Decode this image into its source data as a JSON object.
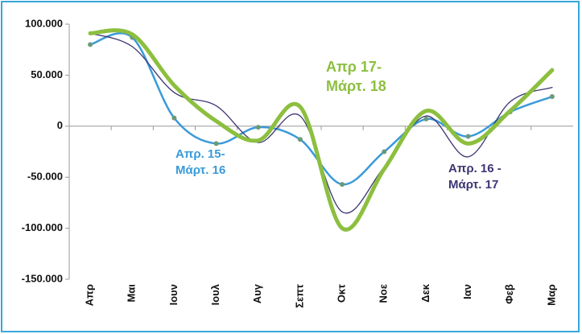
{
  "chart_data": {
    "type": "line",
    "categories": [
      "Απρ",
      "Μαι",
      "Ιουν",
      "Ιουλ",
      "Αυγ",
      "Σεπτ",
      "Οκτ",
      "Νοε",
      "Δεκ",
      "Ιαν",
      "Φεβ",
      "Μαρ"
    ],
    "series": [
      {
        "name": [
          "Απρ. 15-",
          "Μάρτ. 16"
        ],
        "color": "#3a9ad9",
        "markers": true,
        "values": [
          80000,
          87000,
          8000,
          -17000,
          -1000,
          -13000,
          -57000,
          -25000,
          7000,
          -10000,
          14000,
          29000
        ]
      },
      {
        "name": [
          "Απρ. 16 -",
          "Μάρτ. 17"
        ],
        "color": "#3c3672",
        "markers": false,
        "values": [
          91000,
          78000,
          33000,
          20000,
          -16000,
          10000,
          -84000,
          -40000,
          10000,
          -30000,
          24000,
          38000
        ]
      },
      {
        "name": [
          "Απρ 17-",
          "Μάρτ. 18"
        ],
        "color": "#8cbf3f",
        "markers": false,
        "values": [
          91000,
          90000,
          40000,
          5000,
          -14000,
          19000,
          -100000,
          -42000,
          15000,
          -17000,
          15000,
          55000
        ]
      }
    ],
    "ylim": [
      -150000,
      100000
    ],
    "yticks": [
      {
        "value": -150000,
        "label": "-150.000"
      },
      {
        "value": -100000,
        "label": "-100.000"
      },
      {
        "value": -50000,
        "label": "-50.000"
      },
      0,
      {
        "value": 50000,
        "label": "50.000"
      },
      {
        "value": 100000,
        "label": "100.000"
      }
    ]
  }
}
